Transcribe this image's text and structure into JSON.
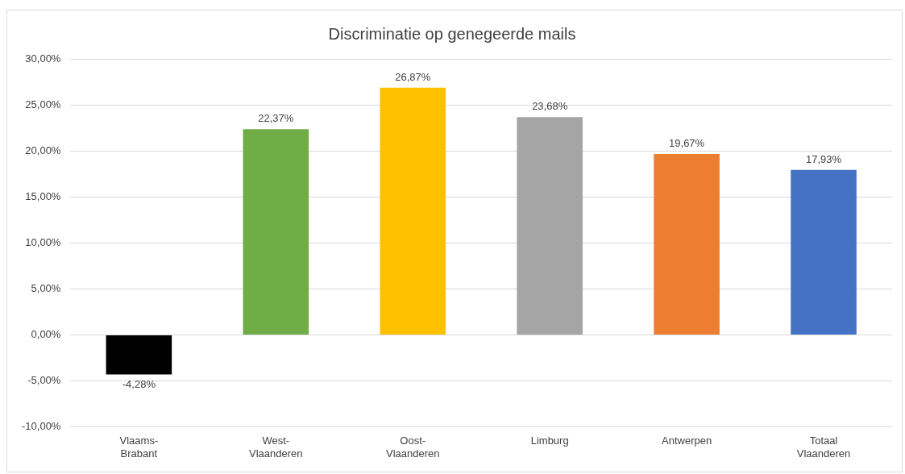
{
  "chart_data": {
    "type": "bar",
    "title": "Discriminatie op genegeerde mails",
    "categories": [
      "Vlaams-\nBrabant",
      "West-\nVlaanderen",
      "Oost-\nVlaanderen",
      "Limburg",
      "Antwerpen",
      "Totaal\nVlaanderen"
    ],
    "values": [
      -4.28,
      22.37,
      26.87,
      23.68,
      19.67,
      17.93
    ],
    "colors": [
      "#000000",
      "#70ad47",
      "#ffc000",
      "#a5a5a5",
      "#ed7d31",
      "#4472c4"
    ],
    "value_labels": [
      "-4,28%",
      "22,37%",
      "26,87%",
      "23,68%",
      "19,67%",
      "17,93%"
    ],
    "ylim": [
      -10,
      30
    ],
    "yticks": [
      {
        "value": -10,
        "label": "-10,00%"
      },
      {
        "value": -5,
        "label": "-5,00%"
      },
      {
        "value": 0,
        "label": "0,00%"
      },
      {
        "value": 5,
        "label": "5,00%"
      },
      {
        "value": 10,
        "label": "10,00%"
      },
      {
        "value": 15,
        "label": "15,00%"
      },
      {
        "value": 20,
        "label": "20,00%"
      },
      {
        "value": 25,
        "label": "25,00%"
      },
      {
        "value": 30,
        "label": "30,00%"
      }
    ],
    "grid": "y",
    "legend": false
  }
}
